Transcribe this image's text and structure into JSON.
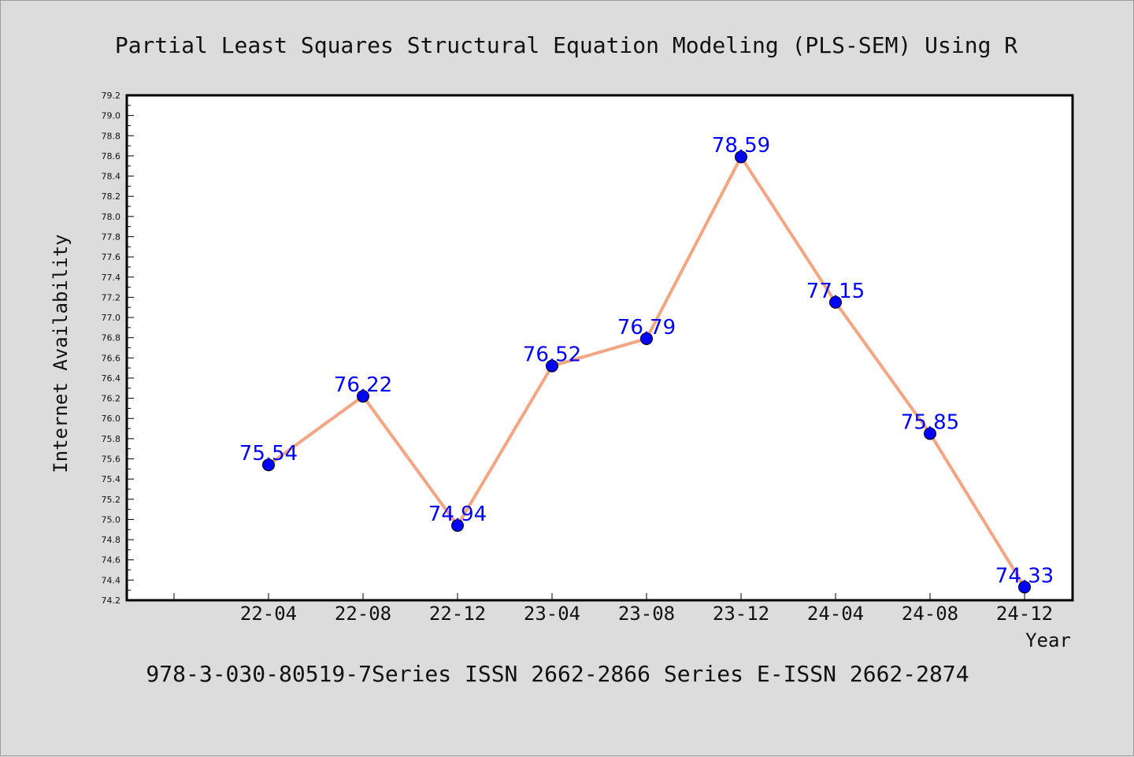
{
  "chart_data": {
    "type": "line",
    "title": "Partial Least Squares Structural Equation Modeling (PLS-SEM) Using R",
    "xlabel": "Year",
    "ylabel": "Internet Availability",
    "categories": [
      "22-04",
      "22-08",
      "22-12",
      "23-04",
      "23-08",
      "23-12",
      "24-04",
      "24-08",
      "24-12"
    ],
    "series": [
      {
        "values": [
          75.54,
          76.22,
          74.94,
          76.52,
          76.79,
          78.59,
          77.15,
          75.85,
          74.33
        ],
        "labels": [
          "75.54",
          "76.22",
          "74.94",
          "76.52",
          "76.79",
          "78.59",
          "77.15",
          "75.85",
          "74.33"
        ]
      }
    ],
    "ylim": [
      74.2,
      79.2
    ],
    "yticks": [
      "74.2",
      "74.4",
      "74.6",
      "74.8",
      "75.0",
      "75.2",
      "75.4",
      "75.6",
      "75.8",
      "76.0",
      "76.2",
      "76.4",
      "76.6",
      "76.8",
      "77.0",
      "77.2",
      "77.4",
      "77.6",
      "77.8",
      "78.0",
      "78.2",
      "78.4",
      "78.6",
      "78.8",
      "79.0",
      "79.2"
    ],
    "grid": false,
    "colors": {
      "line": "#f4a582",
      "marker": "#0000ff",
      "label": "#0000ff",
      "axis": "#000000"
    }
  },
  "footer": "978-3-030-80519-7Series ISSN 2662-2866 Series E-ISSN 2662-2874"
}
